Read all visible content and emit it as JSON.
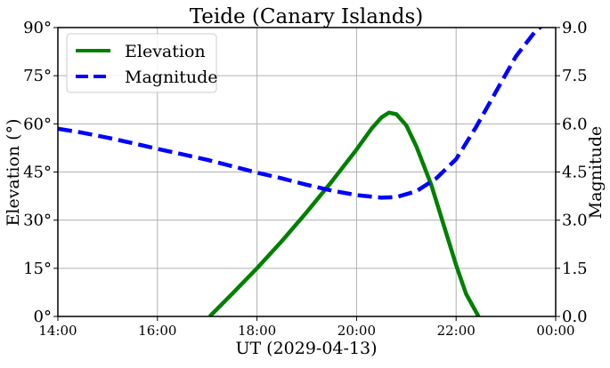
{
  "chart_data": {
    "type": "line",
    "title": "Teide (Canary Islands)",
    "xlabel": "UT (2029-04-13)",
    "ylabel_left": "Elevation (°)",
    "ylabel_right": "Magnitude",
    "xlim": [
      14.0,
      24.0
    ],
    "ylim_left": [
      0,
      90
    ],
    "ylim_right": [
      0.0,
      9.0
    ],
    "x_ticks": [
      14,
      16,
      18,
      20,
      22,
      24
    ],
    "x_tick_labels": [
      "14:00",
      "16:00",
      "18:00",
      "20:00",
      "22:00",
      "00:00"
    ],
    "y_left_ticks": [
      0,
      15,
      30,
      45,
      60,
      75,
      90
    ],
    "y_left_tick_labels": [
      "0°",
      "15°",
      "30°",
      "45°",
      "60°",
      "75°",
      "90°"
    ],
    "y_right_ticks": [
      0,
      1.5,
      3.0,
      4.5,
      6.0,
      7.5,
      9.0
    ],
    "y_right_tick_labels": [
      "0.0",
      "1.5",
      "3.0",
      "4.5",
      "6.0",
      "7.5",
      "9.0"
    ],
    "grid": true,
    "legend_position": "top-left",
    "series": [
      {
        "name": "Elevation",
        "axis": "left",
        "color": "#008000",
        "style": "solid",
        "x": [
          17.05,
          17.5,
          18.0,
          18.5,
          19.0,
          19.5,
          20.0,
          20.3,
          20.5,
          20.65,
          20.8,
          21.0,
          21.2,
          21.5,
          21.8,
          22.0,
          22.2,
          22.45
        ],
        "y": [
          0,
          7,
          15,
          23.5,
          32.5,
          42,
          52,
          58.5,
          62,
          63.5,
          63,
          59.5,
          53,
          41,
          26,
          16,
          7,
          0
        ]
      },
      {
        "name": "Magnitude",
        "axis": "right",
        "color": "#0000ff",
        "style": "dashed",
        "x": [
          14.0,
          14.5,
          15.0,
          15.5,
          16.0,
          16.5,
          17.0,
          17.5,
          18.0,
          18.5,
          19.0,
          19.5,
          20.0,
          20.5,
          20.8,
          21.2,
          21.6,
          22.0,
          22.4,
          22.8,
          23.2,
          23.6,
          23.85
        ],
        "y": [
          5.85,
          5.72,
          5.57,
          5.4,
          5.22,
          5.05,
          4.88,
          4.68,
          4.48,
          4.3,
          4.1,
          3.92,
          3.78,
          3.7,
          3.72,
          3.9,
          4.3,
          4.9,
          5.9,
          7.0,
          8.1,
          8.9,
          9.2
        ]
      }
    ]
  }
}
